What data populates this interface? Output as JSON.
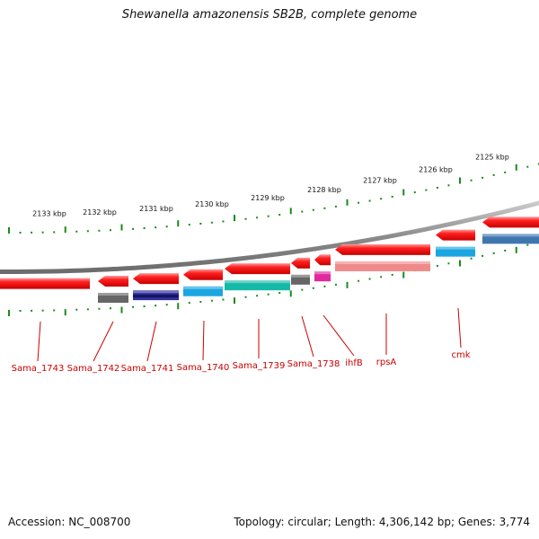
{
  "title": "Shewanella amazonensis SB2B, complete genome",
  "footer": {
    "accession": "Accession: NC_008700",
    "topology": "Topology: circular; Length: 4,306,142 bp; Genes: 3,774"
  },
  "scale_labels": [
    "2133 kbp",
    "2132 kbp",
    "2131 kbp",
    "2130 kbp",
    "2129 kbp",
    "2128 kbp",
    "2127 kbp",
    "2126 kbp",
    "2125 kbp"
  ],
  "genes": [
    {
      "label": "Sama_1743",
      "strand": "-",
      "color": "#ff0000"
    },
    {
      "label": "Sama_1742",
      "strand": "-",
      "color": "#ff0000",
      "domain_color": "#666666"
    },
    {
      "label": "Sama_1741",
      "strand": "-",
      "color": "#ff0000",
      "domain_color": "#2f2f9f"
    },
    {
      "label": "Sama_1740",
      "strand": "-",
      "color": "#ff0000",
      "domain_color": "#1aa6e0"
    },
    {
      "label": "Sama_1739",
      "strand": "-",
      "color": "#ff0000",
      "domain_color": "#16b9a8"
    },
    {
      "label": "Sama_1738",
      "strand": "-",
      "color": "#ff0000",
      "domain_color": "#666666"
    },
    {
      "label": "ihfB",
      "strand": "-",
      "color": "#ff0000",
      "domain_color": "#e0299f"
    },
    {
      "label": "rpsA",
      "strand": "-",
      "color": "#ff0000",
      "domain_color": "#f08a8a"
    },
    {
      "label": "cmk",
      "strand": "-",
      "color": "#ff0000",
      "domain_color": "#1aa6e0"
    },
    {
      "label": "",
      "strand": "-",
      "color": "#ff0000",
      "domain_color": "#3f76b0"
    }
  ],
  "colors": {
    "gene": "#ff0000",
    "label": "#cc0000",
    "tick": "#1a8a1a",
    "backbone": "#8a8a8a"
  }
}
